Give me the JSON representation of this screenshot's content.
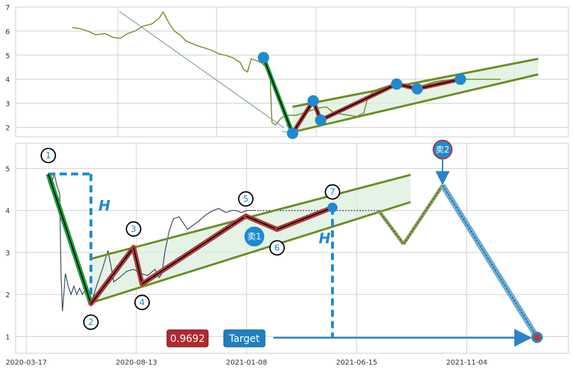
{
  "chart_data": [
    {
      "type": "line",
      "panel": "top",
      "ylim": [
        1.6,
        7
      ],
      "y_ticks": [
        "2",
        "3",
        "4",
        "5",
        "6",
        "7"
      ],
      "grid": true,
      "price_series": [
        [
          5,
          6.15
        ],
        [
          14,
          6.1
        ],
        [
          22,
          6.0
        ],
        [
          30,
          5.85
        ],
        [
          40,
          5.9
        ],
        [
          48,
          5.75
        ],
        [
          56,
          5.7
        ],
        [
          64,
          5.9
        ],
        [
          72,
          6.0
        ],
        [
          80,
          6.2
        ],
        [
          90,
          6.3
        ],
        [
          98,
          6.55
        ],
        [
          102,
          6.8
        ],
        [
          108,
          6.35
        ],
        [
          114,
          6.0
        ],
        [
          120,
          5.85
        ],
        [
          126,
          5.6
        ],
        [
          132,
          5.5
        ],
        [
          138,
          5.4
        ],
        [
          146,
          5.3
        ],
        [
          154,
          5.2
        ],
        [
          162,
          5.05
        ],
        [
          168,
          5.0
        ],
        [
          176,
          4.9
        ],
        [
          184,
          4.7
        ],
        [
          188,
          4.4
        ],
        [
          192,
          4.3
        ],
        [
          196,
          4.85
        ],
        [
          200,
          4.8
        ],
        [
          206,
          4.7
        ],
        [
          212,
          4.5
        ],
        [
          216,
          4.2
        ],
        [
          218,
          2.2
        ],
        [
          222,
          2.1
        ],
        [
          228,
          2.4
        ],
        [
          236,
          2.5
        ],
        [
          244,
          2.5
        ],
        [
          252,
          2.6
        ],
        [
          260,
          2.7
        ],
        [
          268,
          2.8
        ],
        [
          276,
          2.85
        ],
        [
          284,
          2.6
        ],
        [
          292,
          2.55
        ],
        [
          300,
          2.5
        ],
        [
          308,
          2.45
        ],
        [
          316,
          2.6
        ],
        [
          320,
          3.2
        ],
        [
          326,
          3.5
        ],
        [
          332,
          3.6
        ],
        [
          340,
          3.7
        ],
        [
          348,
          3.8
        ],
        [
          356,
          3.75
        ],
        [
          362,
          3.65
        ],
        [
          368,
          3.6
        ],
        [
          376,
          3.7
        ],
        [
          384,
          3.8
        ],
        [
          392,
          3.9
        ],
        [
          400,
          3.95
        ],
        [
          410,
          3.97
        ],
        [
          420,
          4.0
        ],
        [
          432,
          4.0
        ],
        [
          448,
          4.0
        ],
        [
          462,
          4.0
        ]
      ],
      "pivots": [
        [
          209,
          4.9
        ],
        [
          240,
          1.75
        ],
        [
          262,
          3.1
        ],
        [
          270,
          2.3
        ],
        [
          351,
          3.8
        ],
        [
          373,
          3.6
        ],
        [
          419,
          4.0
        ]
      ],
      "channel_upper": [
        [
          240,
          2.85
        ],
        [
          502,
          4.85
        ]
      ],
      "channel_lower": [
        [
          240,
          1.8
        ],
        [
          502,
          4.2
        ]
      ]
    },
    {
      "type": "line",
      "panel": "bottom",
      "ylim": [
        0.6,
        5.6
      ],
      "y_ticks": [
        "1",
        "2",
        "3",
        "4",
        "5"
      ],
      "x_ticks": [
        "2020-03-17",
        "2020-08-13",
        "2021-01-08",
        "2021-06-15",
        "2021-11-04"
      ],
      "grid": true,
      "price_series": [
        [
          0,
          4.7
        ],
        [
          4,
          4.5
        ],
        [
          8,
          4.9
        ],
        [
          12,
          4.6
        ],
        [
          16,
          4.4
        ],
        [
          18,
          2.4
        ],
        [
          20,
          1.6
        ],
        [
          24,
          2.5
        ],
        [
          28,
          2.2
        ],
        [
          32,
          2.0
        ],
        [
          36,
          2.2
        ],
        [
          40,
          2.0
        ],
        [
          44,
          2.15
        ],
        [
          48,
          2.0
        ],
        [
          52,
          2.1
        ],
        [
          56,
          1.9
        ],
        [
          60,
          1.78
        ],
        [
          68,
          2.2
        ],
        [
          76,
          2.6
        ],
        [
          84,
          3.05
        ],
        [
          88,
          2.7
        ],
        [
          92,
          2.3
        ],
        [
          100,
          2.4
        ],
        [
          110,
          2.55
        ],
        [
          120,
          2.6
        ],
        [
          130,
          2.5
        ],
        [
          140,
          2.45
        ],
        [
          150,
          2.6
        ],
        [
          156,
          2.4
        ],
        [
          160,
          2.5
        ],
        [
          164,
          3.0
        ],
        [
          170,
          3.5
        ],
        [
          176,
          3.8
        ],
        [
          184,
          3.85
        ],
        [
          190,
          3.7
        ],
        [
          196,
          3.55
        ],
        [
          204,
          3.65
        ],
        [
          212,
          3.75
        ],
        [
          222,
          3.9
        ],
        [
          232,
          4.0
        ],
        [
          240,
          4.05
        ],
        [
          250,
          3.95
        ],
        [
          258,
          4.0
        ],
        [
          264,
          4.0
        ],
        [
          272,
          3.95
        ],
        [
          280,
          4.0
        ],
        [
          290,
          4.0
        ]
      ],
      "pivots": [
        [
          0,
          4.87
        ],
        [
          60,
          1.78
        ],
        [
          120,
          3.12
        ],
        [
          132,
          2.25
        ],
        [
          278,
          3.87
        ],
        [
          322,
          3.55
        ],
        [
          400,
          4.07
        ]
      ],
      "pivot_labels": [
        "1",
        "2",
        "3",
        "4",
        "5",
        "6",
        "7"
      ],
      "channel_upper": [
        [
          60,
          2.85
        ],
        [
          510,
          4.85
        ]
      ],
      "channel_lower": [
        [
          60,
          1.8
        ],
        [
          510,
          4.2
        ]
      ],
      "forecast": [
        [
          465,
          4.0
        ],
        [
          500,
          3.2
        ],
        [
          555,
          4.6
        ],
        [
          688,
          0.98
        ]
      ],
      "signals": [
        {
          "label": "卖1",
          "at": [
            290,
            3.38
          ]
        },
        {
          "label": "卖2",
          "at": [
            555,
            5.45
          ]
        }
      ],
      "h_label": "H",
      "target_label": "Target",
      "value_label": "0.9692",
      "target_value": 0.9692
    }
  ]
}
